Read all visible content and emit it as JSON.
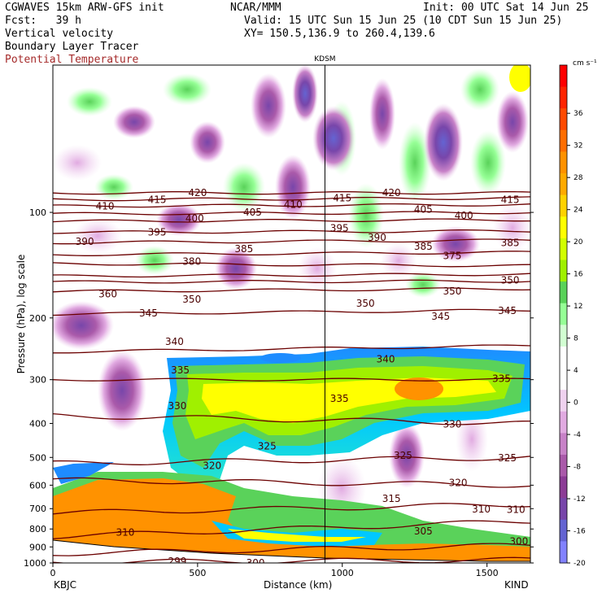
{
  "header": {
    "model": "CGWAVES 15km ARW-GFS init",
    "fcst": "Fcst:   39 h",
    "org": "NCAR/MMM",
    "init": "Init: 00 UTC Sat 14 Jun 25",
    "valid": "Valid: 15 UTC Sun 15 Jun 25 (10 CDT Sun 15 Jun 25)",
    "field1": "Vertical velocity",
    "field2": "Boundary Layer Tracer",
    "field3": "Potential Temperature",
    "xy": "XY= 150.5,136.9 to 260.4,139.6",
    "field3_color": "#a52a2a"
  },
  "chart_data": {
    "type": "heatmap",
    "station_marker": "KDSM",
    "xlabel": "Distance (km)",
    "ylabel": "Pressure (hPa), log scale",
    "x_ticks": [
      0,
      500,
      1000,
      1500
    ],
    "x_tick_labels": [
      "0",
      "500",
      "1000",
      "1500"
    ],
    "xlim": [
      0,
      1650
    ],
    "station_x": 940,
    "left_end_label": "KBJC",
    "right_end_label": "KIND",
    "y_ticks": [
      100,
      200,
      300,
      400,
      500,
      600,
      700,
      800,
      900,
      1000
    ],
    "y_tick_labels": [
      "100",
      "200",
      "300",
      "400",
      "500",
      "600",
      "700",
      "800",
      "900",
      "1000"
    ],
    "ylim": [
      1000,
      38
    ],
    "y_scale": "log",
    "colorbar": {
      "unit": "cm s⁻¹",
      "labels": [
        "36",
        "32",
        "28",
        "24",
        "20",
        "16",
        "12",
        "8",
        "4",
        "0",
        "-4",
        "-8",
        "-12",
        "-16",
        "-20"
      ],
      "colors": [
        "#ff0000",
        "#ff2400",
        "#ff4a00",
        "#ff6e00",
        "#ff9200",
        "#ffaa00",
        "#ffd200",
        "#ffff00",
        "#d2ff00",
        "#a0f000",
        "#5ad25a",
        "#96ff96",
        "#d2ffd2",
        "#ffffff",
        "#ffffff",
        "#f0d2f0",
        "#e1aae1",
        "#c882c8",
        "#aa5aaa",
        "#8c3c96",
        "#7846aa",
        "#6464d2",
        "#8282ff"
      ]
    },
    "theta_contours": [
      {
        "theta": 299,
        "p_left": 995,
        "p_right": 980
      },
      {
        "theta": 305,
        "p_left": 940,
        "p_right": 890
      },
      {
        "theta": 310,
        "p_left": 840,
        "p_right": 760
      },
      {
        "theta": 315,
        "p_left": 720,
        "p_right": 680
      },
      {
        "theta": 320,
        "p_left": 580,
        "p_right": 600
      },
      {
        "theta": 325,
        "p_left": 520,
        "p_right": 500
      },
      {
        "theta": 330,
        "p_left": 380,
        "p_right": 400
      },
      {
        "theta": 335,
        "p_left": 300,
        "p_right": 300
      },
      {
        "theta": 340,
        "p_left": 250,
        "p_right": 240
      },
      {
        "theta": 345,
        "p_left": 195,
        "p_right": 190
      },
      {
        "theta": 350,
        "p_left": 168,
        "p_right": 165
      },
      {
        "theta": 360,
        "p_left": 158,
        "p_right": 157
      },
      {
        "theta": 375,
        "p_left": 152,
        "p_right": 150
      },
      {
        "theta": 380,
        "p_left": 140,
        "p_right": 142
      },
      {
        "theta": 385,
        "p_left": 132,
        "p_right": 130
      },
      {
        "theta": 390,
        "p_left": 122,
        "p_right": 120
      },
      {
        "theta": 395,
        "p_left": 114,
        "p_right": 113
      },
      {
        "theta": 400,
        "p_left": 106,
        "p_right": 105
      },
      {
        "theta": 405,
        "p_left": 101,
        "p_right": 100
      },
      {
        "theta": 410,
        "p_left": 96,
        "p_right": 95
      },
      {
        "theta": 415,
        "p_left": 92,
        "p_right": 91
      },
      {
        "theta": 420,
        "p_left": 88,
        "p_right": 88
      }
    ],
    "contour_labels": [
      {
        "text": "420",
        "x": 500,
        "p": 88
      },
      {
        "text": "420",
        "x": 1170,
        "p": 88
      },
      {
        "text": "415",
        "x": 360,
        "p": 92
      },
      {
        "text": "415",
        "x": 1000,
        "p": 91
      },
      {
        "text": "415",
        "x": 1580,
        "p": 92
      },
      {
        "text": "410",
        "x": 180,
        "p": 96
      },
      {
        "text": "410",
        "x": 830,
        "p": 95
      },
      {
        "text": "405",
        "x": 690,
        "p": 100
      },
      {
        "text": "405",
        "x": 1280,
        "p": 98
      },
      {
        "text": "400",
        "x": 490,
        "p": 104
      },
      {
        "text": "400",
        "x": 1420,
        "p": 102
      },
      {
        "text": "395",
        "x": 360,
        "p": 114
      },
      {
        "text": "395",
        "x": 990,
        "p": 111
      },
      {
        "text": "390",
        "x": 110,
        "p": 121
      },
      {
        "text": "390",
        "x": 1120,
        "p": 118
      },
      {
        "text": "385",
        "x": 660,
        "p": 127
      },
      {
        "text": "385",
        "x": 1280,
        "p": 125
      },
      {
        "text": "385",
        "x": 1580,
        "p": 122
      },
      {
        "text": "380",
        "x": 480,
        "p": 138
      },
      {
        "text": "375",
        "x": 1380,
        "p": 133
      },
      {
        "text": "360",
        "x": 190,
        "p": 171
      },
      {
        "text": "350",
        "x": 480,
        "p": 177
      },
      {
        "text": "350",
        "x": 1080,
        "p": 182
      },
      {
        "text": "350",
        "x": 1380,
        "p": 168
      },
      {
        "text": "350",
        "x": 1580,
        "p": 156
      },
      {
        "text": "345",
        "x": 330,
        "p": 194
      },
      {
        "text": "345",
        "x": 1340,
        "p": 198
      },
      {
        "text": "345",
        "x": 1570,
        "p": 191
      },
      {
        "text": "340",
        "x": 420,
        "p": 234
      },
      {
        "text": "340",
        "x": 1150,
        "p": 262
      },
      {
        "text": "335",
        "x": 440,
        "p": 282
      },
      {
        "text": "335",
        "x": 990,
        "p": 340
      },
      {
        "text": "335",
        "x": 1550,
        "p": 298
      },
      {
        "text": "330",
        "x": 430,
        "p": 357
      },
      {
        "text": "330",
        "x": 1380,
        "p": 402
      },
      {
        "text": "325",
        "x": 740,
        "p": 464
      },
      {
        "text": "325",
        "x": 1210,
        "p": 494
      },
      {
        "text": "325",
        "x": 1570,
        "p": 502
      },
      {
        "text": "320",
        "x": 550,
        "p": 528
      },
      {
        "text": "320",
        "x": 1400,
        "p": 590
      },
      {
        "text": "315",
        "x": 1170,
        "p": 656
      },
      {
        "text": "310",
        "x": 250,
        "p": 818
      },
      {
        "text": "310",
        "x": 1480,
        "p": 702
      },
      {
        "text": "310",
        "x": 1600,
        "p": 704
      },
      {
        "text": "305",
        "x": 1280,
        "p": 812
      },
      {
        "text": "300",
        "x": 1610,
        "p": 868
      },
      {
        "text": "299",
        "x": 430,
        "p": 990
      },
      {
        "text": "300",
        "x": 700,
        "p": 1000
      }
    ]
  }
}
